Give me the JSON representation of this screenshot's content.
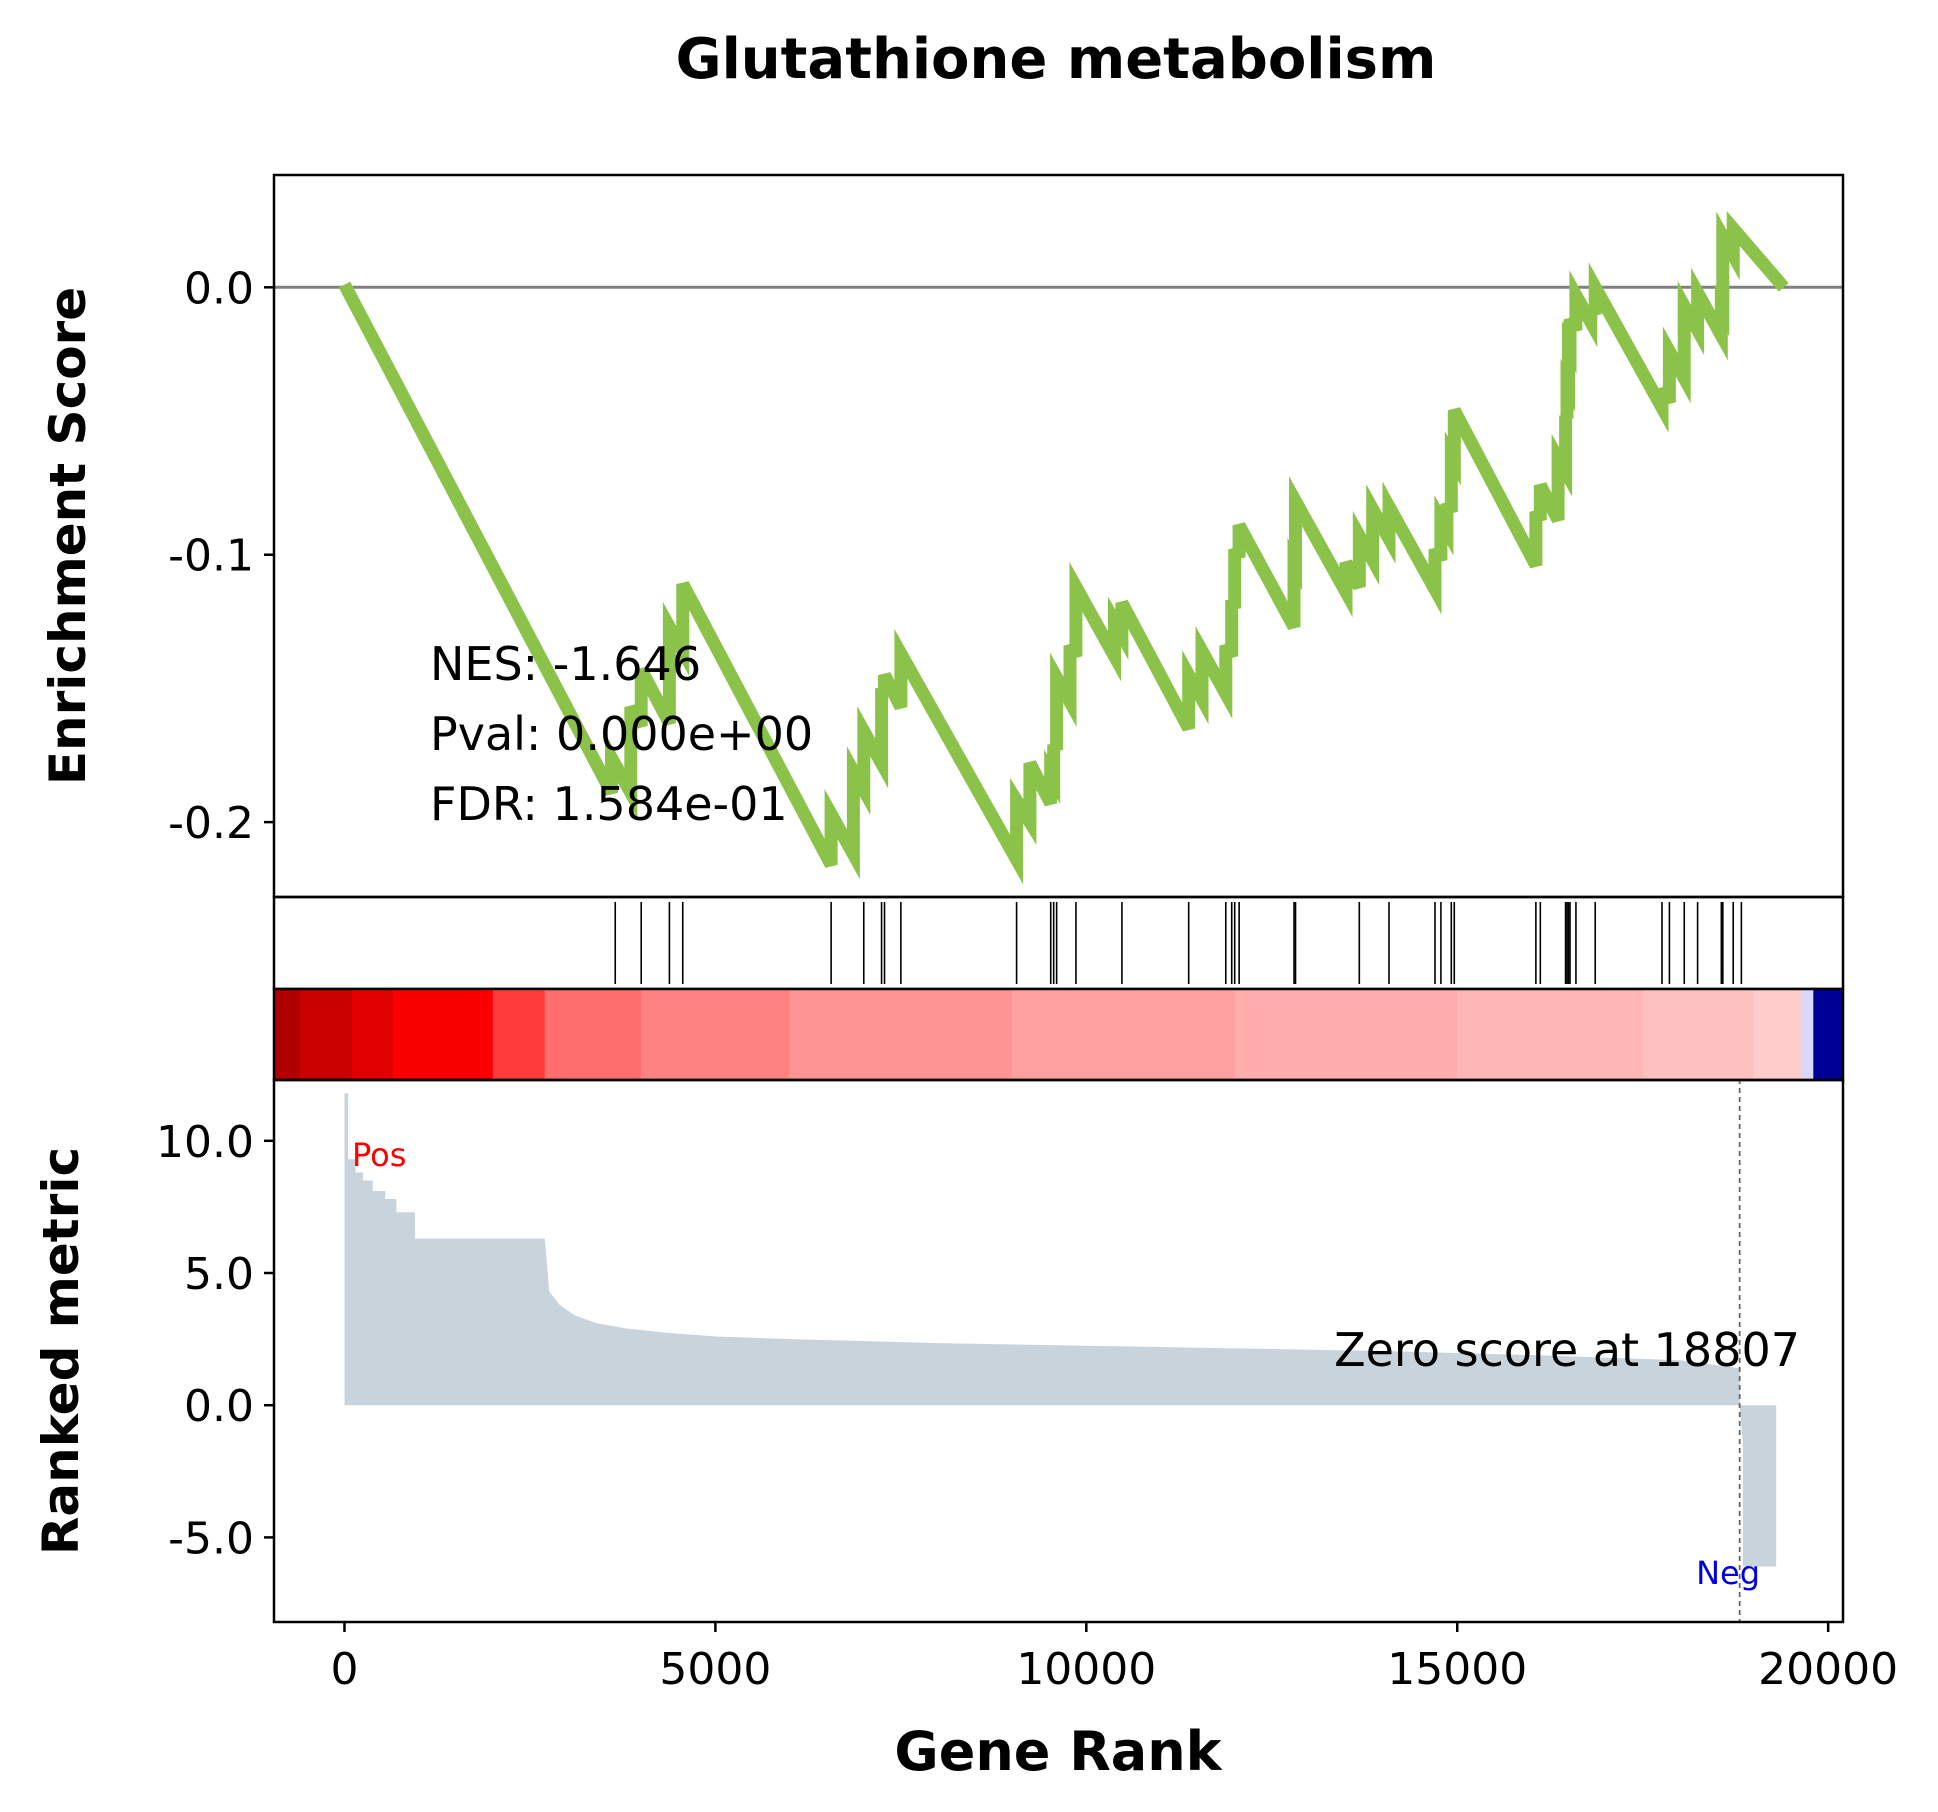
{
  "chart_data": {
    "type": "line",
    "title": "Glutathione metabolism",
    "xlabel": "Gene Rank",
    "xlim": [
      -950,
      20200
    ],
    "x_ticks": [
      0,
      5000,
      10000,
      15000,
      20000
    ],
    "enrichment": {
      "ylabel": "Enrichment Score",
      "ylim": [
        -0.228,
        0.042
      ],
      "y_ticks": [
        0.0,
        -0.1,
        -0.2
      ],
      "y_tick_labels": [
        "0.0",
        "-0.1",
        "-0.2"
      ],
      "baseline": 0.0,
      "line_color": "#8bc34a",
      "stats": {
        "nes": "NES: -1.646",
        "pval": "Pval: 0.000e+00",
        "fdr": "FDR: 1.584e-01"
      },
      "x": [
        0,
        3600,
        3600,
        3860,
        3860,
        4000,
        4000,
        4380,
        4380,
        4560,
        4560,
        6560,
        6560,
        6860,
        6860,
        7000,
        7000,
        7240,
        7240,
        7280,
        7280,
        7500,
        7500,
        9060,
        9060,
        9240,
        9240,
        9520,
        9520,
        9560,
        9560,
        9600,
        9600,
        9780,
        9780,
        9860,
        9860,
        10380,
        10380,
        10480,
        10480,
        11380,
        11380,
        11560,
        11560,
        11880,
        11880,
        11960,
        11960,
        12000,
        12000,
        12060,
        12060,
        12060,
        12060,
        12800,
        12800,
        12820,
        12820,
        13500,
        13500,
        13680,
        13680,
        13860,
        13860,
        14080,
        14080,
        14700,
        14700,
        14780,
        14780,
        14860,
        14860,
        14920,
        14920,
        14960,
        14960,
        16060,
        16060,
        16120,
        16120,
        16360,
        16360,
        16460,
        16460,
        16480,
        16480,
        16500,
        16500,
        16520,
        16520,
        16600,
        16600,
        16800,
        16800,
        16860,
        16860,
        17760,
        17760,
        17860,
        17860,
        18060,
        18060,
        18240,
        18240,
        18560,
        18560,
        18580,
        18580,
        18720,
        18720,
        19400
      ],
      "y": [
        0.001,
        -0.189,
        -0.176,
        -0.189,
        -0.157,
        -0.164,
        -0.143,
        -0.163,
        -0.127,
        -0.136,
        -0.111,
        -0.216,
        -0.197,
        -0.212,
        -0.181,
        -0.188,
        -0.166,
        -0.178,
        -0.15,
        -0.152,
        -0.145,
        -0.157,
        -0.137,
        -0.214,
        -0.192,
        -0.2,
        -0.178,
        -0.193,
        -0.182,
        -0.184,
        -0.171,
        -0.173,
        -0.146,
        -0.155,
        -0.134,
        -0.138,
        -0.112,
        -0.138,
        -0.125,
        -0.13,
        -0.118,
        -0.165,
        -0.145,
        -0.154,
        -0.136,
        -0.152,
        -0.134,
        -0.138,
        -0.117,
        -0.12,
        -0.098,
        -0.101,
        -0.089,
        -0.089,
        -0.089,
        -0.127,
        -0.103,
        -0.104,
        -0.08,
        -0.114,
        -0.103,
        -0.112,
        -0.093,
        -0.102,
        -0.083,
        -0.094,
        -0.082,
        -0.113,
        -0.098,
        -0.102,
        -0.087,
        -0.091,
        -0.081,
        -0.084,
        -0.063,
        -0.065,
        -0.046,
        -0.104,
        -0.084,
        -0.087,
        -0.074,
        -0.087,
        -0.064,
        -0.069,
        -0.048,
        -0.049,
        -0.036,
        -0.037,
        -0.022,
        -0.023,
        -0.012,
        -0.016,
        -0.003,
        -0.013,
        -0.007,
        -0.01,
        0.0,
        -0.045,
        -0.038,
        -0.043,
        -0.024,
        -0.034,
        -0.007,
        -0.016,
        -0.002,
        -0.018,
        -0.008,
        -0.009,
        0.019,
        0.012,
        0.022,
        0.0
      ]
    },
    "hits": [
      3650,
      4000,
      4380,
      4560,
      6560,
      7000,
      7240,
      7280,
      7500,
      9060,
      9520,
      9560,
      9600,
      9860,
      10480,
      11380,
      11880,
      11960,
      12000,
      12060,
      12800,
      12820,
      13680,
      14080,
      14700,
      14780,
      14920,
      14960,
      16060,
      16120,
      16460,
      16480,
      16500,
      16520,
      16600,
      16860,
      17760,
      17860,
      18060,
      18240,
      18560,
      18580,
      18720,
      18830
    ],
    "colorbar": {
      "segments": [
        {
          "x0": -950,
          "x1": -600,
          "color": "#b20000"
        },
        {
          "x0": -600,
          "x1": 100,
          "color": "#c80000"
        },
        {
          "x0": 100,
          "x1": 650,
          "color": "#e00000"
        },
        {
          "x0": 650,
          "x1": 2000,
          "color": "#fa0000"
        },
        {
          "x0": 2000,
          "x1": 2700,
          "color": "#ff3c3c"
        },
        {
          "x0": 2700,
          "x1": 4000,
          "color": "#ff6e6e"
        },
        {
          "x0": 4000,
          "x1": 6000,
          "color": "#ff8282"
        },
        {
          "x0": 6000,
          "x1": 9000,
          "color": "#ff9494"
        },
        {
          "x0": 9000,
          "x1": 12000,
          "color": "#ffa0a0"
        },
        {
          "x0": 12000,
          "x1": 15000,
          "color": "#ffacac"
        },
        {
          "x0": 15000,
          "x1": 17500,
          "color": "#ffb6b6"
        },
        {
          "x0": 17500,
          "x1": 19000,
          "color": "#ffc0c0"
        },
        {
          "x0": 19000,
          "x1": 19650,
          "color": "#ffcccc"
        },
        {
          "x0": 19650,
          "x1": 19800,
          "color": "#d8d8ff"
        },
        {
          "x0": 19800,
          "x1": 20200,
          "color": "#000096"
        }
      ]
    },
    "ranked": {
      "ylabel": "Ranked metric",
      "ylim": [
        -8.2,
        12.3
      ],
      "y_ticks": [
        10.0,
        5.0,
        0.0,
        -5.0
      ],
      "y_tick_labels": [
        "10.0",
        "5.0",
        "0.0",
        "-5.0"
      ],
      "fill_color": "#c9d3dc",
      "x": [
        0,
        50,
        50,
        150,
        150,
        250,
        250,
        380,
        380,
        550,
        550,
        700,
        700,
        950,
        950,
        1550,
        1550,
        2700,
        2760,
        2900,
        3100,
        3400,
        3800,
        4300,
        5000,
        6000,
        8000,
        10000,
        12000,
        14000,
        16000,
        18000,
        18807,
        18807,
        18850,
        18850,
        19300,
        19300
      ],
      "y": [
        11.8,
        11.8,
        9.3,
        9.3,
        8.8,
        8.8,
        8.5,
        8.5,
        8.1,
        8.1,
        7.8,
        7.8,
        7.3,
        7.3,
        6.3,
        6.3,
        6.3,
        6.3,
        4.3,
        3.8,
        3.4,
        3.1,
        2.9,
        2.75,
        2.6,
        2.5,
        2.35,
        2.25,
        2.15,
        2.05,
        1.9,
        1.7,
        1.4,
        0.0,
        -1.5,
        -6.1,
        -6.1,
        -8.2
      ],
      "zero_rank": 18807,
      "zero_label": "Zero score at 18807",
      "pos_label": "Pos",
      "neg_label": "Neg",
      "pos_color": "#ff0000",
      "neg_color": "#0000dd"
    }
  }
}
